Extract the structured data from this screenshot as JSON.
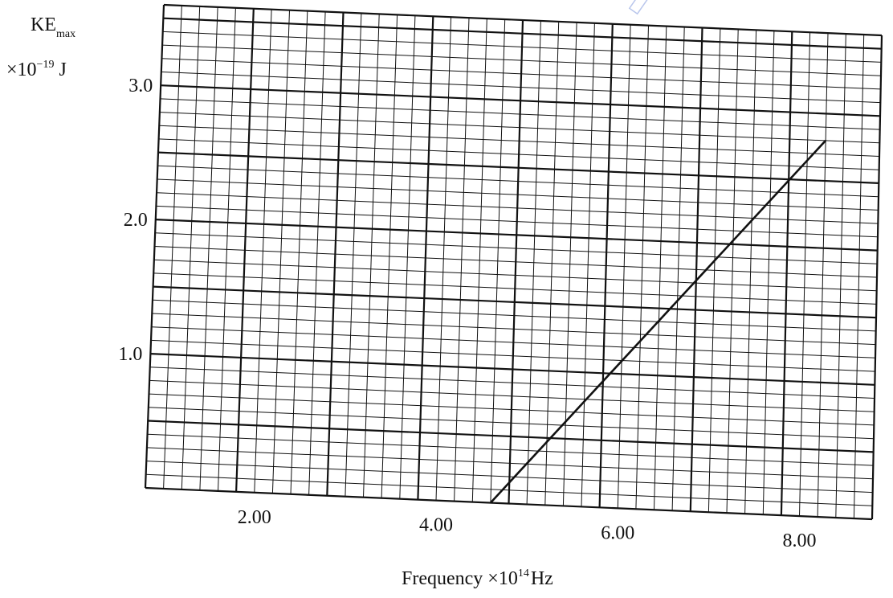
{
  "chart_data": {
    "type": "line",
    "title": "",
    "xlabel": "Frequency ×10",
    "xlabel_exp": "14",
    "xlabel_unit": "Hz",
    "ylabel": "KE",
    "ylabel_sub": "max",
    "ylabel_scale": "×10",
    "ylabel_exp": "−19",
    "ylabel_unit": "J",
    "xlim": [
      0.8,
      8.8
    ],
    "ylim": [
      0,
      3.6
    ],
    "x_ticks": [
      {
        "value": 2.0,
        "label": "2.00"
      },
      {
        "value": 4.0,
        "label": "4.00"
      },
      {
        "value": 6.0,
        "label": "6.00"
      },
      {
        "value": 8.0,
        "label": "8.00"
      }
    ],
    "y_ticks": [
      {
        "value": 1.0,
        "label": "1.0"
      },
      {
        "value": 2.0,
        "label": "2.0"
      },
      {
        "value": 3.0,
        "label": "3.0"
      }
    ],
    "grid": {
      "minor_x": 0.2,
      "major_x": 1.0,
      "minor_y": 0.1,
      "major_y": 0.5
    },
    "series": [
      {
        "x": [
          4.6,
          8.2
        ],
        "y": [
          0.0,
          2.8
        ]
      }
    ],
    "colors": {
      "line": "#111111",
      "grid": "#111111",
      "watermark": "#b9c6ec"
    }
  }
}
